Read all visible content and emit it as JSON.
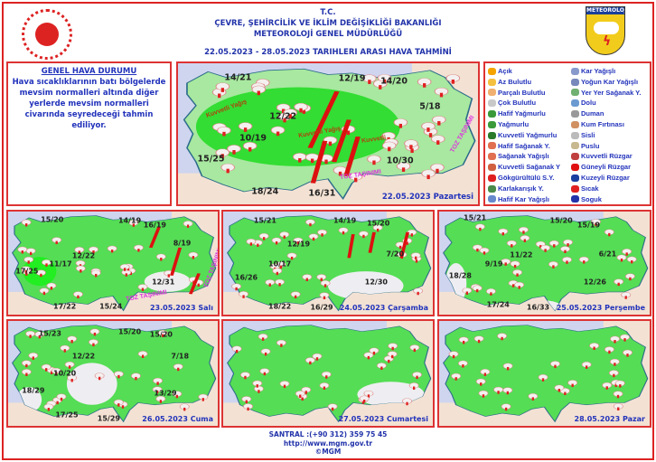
{
  "header": {
    "line1": "T.C.",
    "line2": "ÇEVRE, ŞEHİRCİLİK VE İKLİM DEĞİŞİKLİĞİ BAKANLIĞI",
    "line3": "METEOROLOJİ  GENEL  MÜDÜRLÜĞÜ",
    "line4": "22.05.2023  -  28.05.2023   TARIHLERI  ARASI  HAVA  TAHMİNİ",
    "logo_right_text": "METEOROLOJI"
  },
  "genel": {
    "title": "GENEL HAVA DURUMU",
    "text": "Hava sıcaklıklarının batı bölgelerde mevsim normalleri altında diğer yerlerde mevsim normalleri civarında seyredeceği tahmin ediliyor."
  },
  "legend": {
    "left": [
      {
        "label": "Açık",
        "icon": "sun",
        "color": "#f5a300"
      },
      {
        "label": "Az Bulutlu",
        "icon": "sun-small-cloud",
        "color": "#f5c040"
      },
      {
        "label": "Parçalı Bulutlu",
        "icon": "sun-cloud",
        "color": "#f0b070"
      },
      {
        "label": "Çok Bulutlu",
        "icon": "cloud",
        "color": "#c8c8c8"
      },
      {
        "label": "Hafif Yağmurlu",
        "icon": "light-rain",
        "color": "#3a9a3a"
      },
      {
        "label": "Yağmurlu",
        "icon": "rain",
        "color": "#3a9a3a"
      },
      {
        "label": "Kuvvetli Yağmurlu",
        "icon": "heavy-rain",
        "color": "#2a7a2a"
      },
      {
        "label": "Hafif Sağanak Y.",
        "icon": "light-shower",
        "color": "#e07050"
      },
      {
        "label": "Sağanak Yağışlı",
        "icon": "shower",
        "color": "#e07050"
      },
      {
        "label": "Kuvvetli Sağanak Y",
        "icon": "heavy-shower",
        "color": "#d06040"
      },
      {
        "label": "Gökgürültülü S.Y.",
        "icon": "thunderstorm",
        "color": "#e02020"
      },
      {
        "label": "Karlakarışık Y.",
        "icon": "sleet",
        "color": "#4a8a4a"
      },
      {
        "label": "Hafif Kar Yağışlı",
        "icon": "light-snow",
        "color": "#6688cc"
      }
    ],
    "right": [
      {
        "label": "Kar Yağışlı",
        "icon": "snow",
        "color": "#8899cc"
      },
      {
        "label": "Yoğun Kar Yağışlı",
        "icon": "heavy-snow",
        "color": "#7788bb"
      },
      {
        "label": "Yer Yer Sağanak Y.",
        "icon": "scattered-shower",
        "color": "#70b070"
      },
      {
        "label": "Dolu",
        "icon": "hail",
        "color": "#6a9ad0"
      },
      {
        "label": "Duman",
        "icon": "smoke",
        "color": "#999999"
      },
      {
        "label": "Kum Fırtınası",
        "icon": "sandstorm",
        "color": "#d09060"
      },
      {
        "label": "Sisli",
        "icon": "fog",
        "color": "#bbbbbb"
      },
      {
        "label": "Puslu",
        "icon": "haze",
        "color": "#c8b890"
      },
      {
        "label": "Kuvvetli Rüzgar",
        "icon": "strong-wind",
        "color": "#c04040"
      },
      {
        "label": "Güneyli Rüzgar",
        "icon": "south-wind-arrow",
        "color": "#e01010"
      },
      {
        "label": "Kuzeyli Rüzgar",
        "icon": "north-wind-arrow",
        "color": "#1a3fa0"
      },
      {
        "label": "Sıcak",
        "icon": "hot-thermometer",
        "color": "#e02020"
      },
      {
        "label": "Soguk",
        "icon": "cold-thermometer",
        "color": "#2233aa"
      }
    ]
  },
  "maps": [
    {
      "date": "22.05.2023 Pazartesi",
      "temps": [
        "14/21",
        "12/19",
        "14/20",
        "5/18",
        "12/22",
        "10/19",
        "15/25",
        "18/24",
        "16/31",
        "10/30"
      ],
      "annotations": [
        "Kuvvetli Yağış",
        "Kuvvetli Yağış",
        "Kuvvetli",
        "TOZ TAŞINIMI",
        "TOZ TAŞINIMI"
      ]
    },
    {
      "date": "23.05.2023 Salı",
      "temps": [
        "15/20",
        "14/19",
        "16/19",
        "8/19",
        "12/22",
        "11/17",
        "17/25",
        "12/31",
        "17/22",
        "15/24"
      ],
      "annotations": [
        "TOZ TAŞINIMI",
        "TOZ TAŞINIMI"
      ]
    },
    {
      "date": "24.05.2023 Çarşamba",
      "temps": [
        "15/21",
        "14/19",
        "15/20",
        "12/19",
        "7/20",
        "10/17",
        "16/26",
        "12/30",
        "18/22",
        "16/29"
      ],
      "annotations": []
    },
    {
      "date": "25.05.2023 Perşembe",
      "temps": [
        "15/21",
        "15/20",
        "15/19",
        "6/21",
        "11/22",
        "9/19",
        "18/28",
        "12/26",
        "17/24",
        "16/33"
      ],
      "annotations": []
    },
    {
      "date": "26.05.2023 Cuma",
      "temps": [
        "15/23",
        "15/20",
        "15/20",
        "12/22",
        "7/18",
        "10/20",
        "18/29",
        "13/29",
        "17/25",
        "15/29"
      ],
      "annotations": []
    },
    {
      "date": "27.05.2023 Cumartesi",
      "temps": [],
      "annotations": []
    },
    {
      "date": "28.05.2023 Pazar",
      "temps": [],
      "annotations": []
    }
  ],
  "colors": {
    "border": "#dd3333",
    "text": "#2233bb",
    "land": "#55dd55",
    "sea": "#cfd5ef"
  },
  "footer": {
    "phone": "SANTRAL :(+90 312) 359 75 45",
    "url": "http://www.mgm.gov.tr",
    "copyright": "©MGM"
  }
}
